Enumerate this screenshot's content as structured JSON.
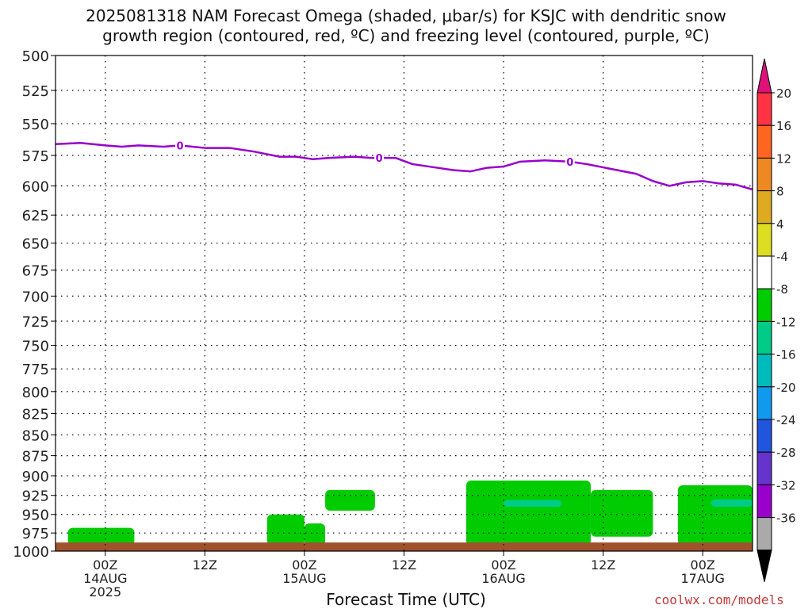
{
  "title_line1": "2025081318 NAM Forecast Omega (shaded, μbar/s) for KSJC with dendritic snow",
  "title_line2": "growth region (contoured, red, ºC) and freezing level (contoured, purple, ºC)",
  "watermark": "coolwx.com/models",
  "chart_data": {
    "type": "heatmap",
    "xlabel": "Forecast Time (UTC)",
    "ylabel": "",
    "y_axis": {
      "ticks": [
        500,
        525,
        550,
        575,
        600,
        625,
        650,
        675,
        700,
        725,
        750,
        775,
        800,
        825,
        850,
        875,
        900,
        925,
        950,
        975,
        1000
      ],
      "scale": "log-pressure",
      "inverted": true,
      "ylim": [
        1000,
        500
      ]
    },
    "x_axis": {
      "xlim_hours": [
        -6,
        78
      ],
      "ticks": [
        {
          "hour": 0,
          "label": "00Z",
          "sub1": "14AUG",
          "sub2": "2025"
        },
        {
          "hour": 12,
          "label": "12Z",
          "sub1": "",
          "sub2": ""
        },
        {
          "hour": 24,
          "label": "00Z",
          "sub1": "15AUG",
          "sub2": ""
        },
        {
          "hour": 36,
          "label": "12Z",
          "sub1": "",
          "sub2": ""
        },
        {
          "hour": 48,
          "label": "00Z",
          "sub1": "16AUG",
          "sub2": ""
        },
        {
          "hour": 60,
          "label": "12Z",
          "sub1": "",
          "sub2": ""
        },
        {
          "hour": 72,
          "label": "00Z",
          "sub1": "17AUG",
          "sub2": ""
        }
      ]
    },
    "grid": true,
    "freezing_level": {
      "color": "#9900cc",
      "label": "0",
      "label_hours": [
        9,
        33,
        56
      ],
      "points": [
        [
          -6,
          566
        ],
        [
          -3,
          565
        ],
        [
          0,
          567
        ],
        [
          2,
          568
        ],
        [
          4,
          567
        ],
        [
          7,
          568
        ],
        [
          9,
          567
        ],
        [
          12,
          569
        ],
        [
          15,
          569
        ],
        [
          18,
          572
        ],
        [
          21,
          576
        ],
        [
          23,
          576
        ],
        [
          25,
          578
        ],
        [
          27,
          577
        ],
        [
          30,
          576
        ],
        [
          32,
          577
        ],
        [
          34,
          577
        ],
        [
          35,
          577
        ],
        [
          37,
          582
        ],
        [
          40,
          585
        ],
        [
          42,
          587
        ],
        [
          44,
          588
        ],
        [
          46,
          585
        ],
        [
          48,
          584
        ],
        [
          50,
          580
        ],
        [
          53,
          579
        ],
        [
          56,
          580
        ],
        [
          58,
          582
        ],
        [
          61,
          586
        ],
        [
          64,
          590
        ],
        [
          66,
          596
        ],
        [
          68,
          600
        ],
        [
          70,
          597
        ],
        [
          72,
          596
        ],
        [
          74,
          598
        ],
        [
          76,
          599
        ],
        [
          78,
          603
        ]
      ]
    },
    "omega_shading": [
      {
        "color": "#00cc00",
        "hour_start": -4.5,
        "hour_end": 3.5,
        "p_top": 968,
        "p_bottom": 992
      },
      {
        "color": "#00cc00",
        "hour_start": 19.5,
        "hour_end": 24,
        "p_top": 950,
        "p_bottom": 992
      },
      {
        "color": "#00cc00",
        "hour_start": 24,
        "hour_end": 26.5,
        "p_top": 962,
        "p_bottom": 992
      },
      {
        "color": "#00cc00",
        "hour_start": 26.5,
        "hour_end": 32.5,
        "p_top": 918,
        "p_bottom": 945
      },
      {
        "color": "#00cc00",
        "hour_start": 43.5,
        "hour_end": 58.5,
        "p_top": 906,
        "p_bottom": 992
      },
      {
        "color": "#00cc00",
        "hour_start": 58.5,
        "hour_end": 66,
        "p_top": 918,
        "p_bottom": 980
      },
      {
        "color": "#00cc00",
        "hour_start": 69,
        "hour_end": 78,
        "p_top": 912,
        "p_bottom": 992
      },
      {
        "color": "#00cc88",
        "hour_start": 48,
        "hour_end": 55,
        "p_top": 931,
        "p_bottom": 940
      },
      {
        "color": "#00cc88",
        "hour_start": 73,
        "hour_end": 78,
        "p_top": 930,
        "p_bottom": 940
      }
    ],
    "terrain": {
      "color": "#a0522d",
      "p_top": 988
    },
    "colorbar": {
      "labels": [
        "20",
        "16",
        "12",
        "8",
        "4",
        "-4",
        "-8",
        "-12",
        "-16",
        "-20",
        "-24",
        "-28",
        "-32",
        "-36"
      ],
      "colors": [
        "#ff3344",
        "#ff6622",
        "#ee8822",
        "#ddaa22",
        "#dddd22",
        "#ffffff",
        "#00cc00",
        "#00cc88",
        "#00bbbb",
        "#1199ee",
        "#2255dd",
        "#6633cc",
        "#9900cc",
        "#aaaaaa"
      ],
      "top_arrow_color": "#dd1177",
      "bottom_arrow_color": "#000000"
    }
  }
}
